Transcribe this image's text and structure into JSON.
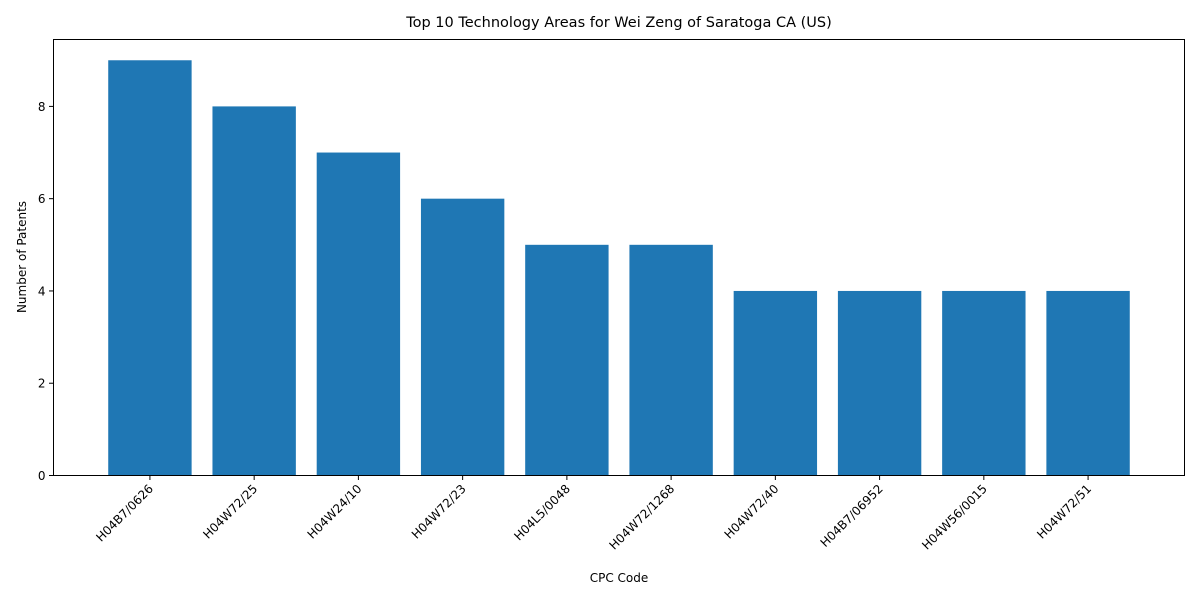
{
  "chart_data": {
    "type": "bar",
    "title": "Top 10 Technology Areas for Wei Zeng of Saratoga CA (US)",
    "xlabel": "CPC Code",
    "ylabel": "Number of Patents",
    "categories": [
      "H04B7/0626",
      "H04W72/25",
      "H04W24/10",
      "H04W72/23",
      "H04L5/0048",
      "H04W72/1268",
      "H04W72/40",
      "H04B7/06952",
      "H04W56/0015",
      "H04W72/51"
    ],
    "values": [
      9,
      8,
      7,
      6,
      5,
      5,
      4,
      4,
      4,
      4
    ],
    "ylim": [
      0,
      9.45
    ],
    "yticks": [
      0,
      2,
      4,
      6,
      8
    ],
    "bar_color": "#1f77b4",
    "grid": false,
    "legend": "none"
  }
}
